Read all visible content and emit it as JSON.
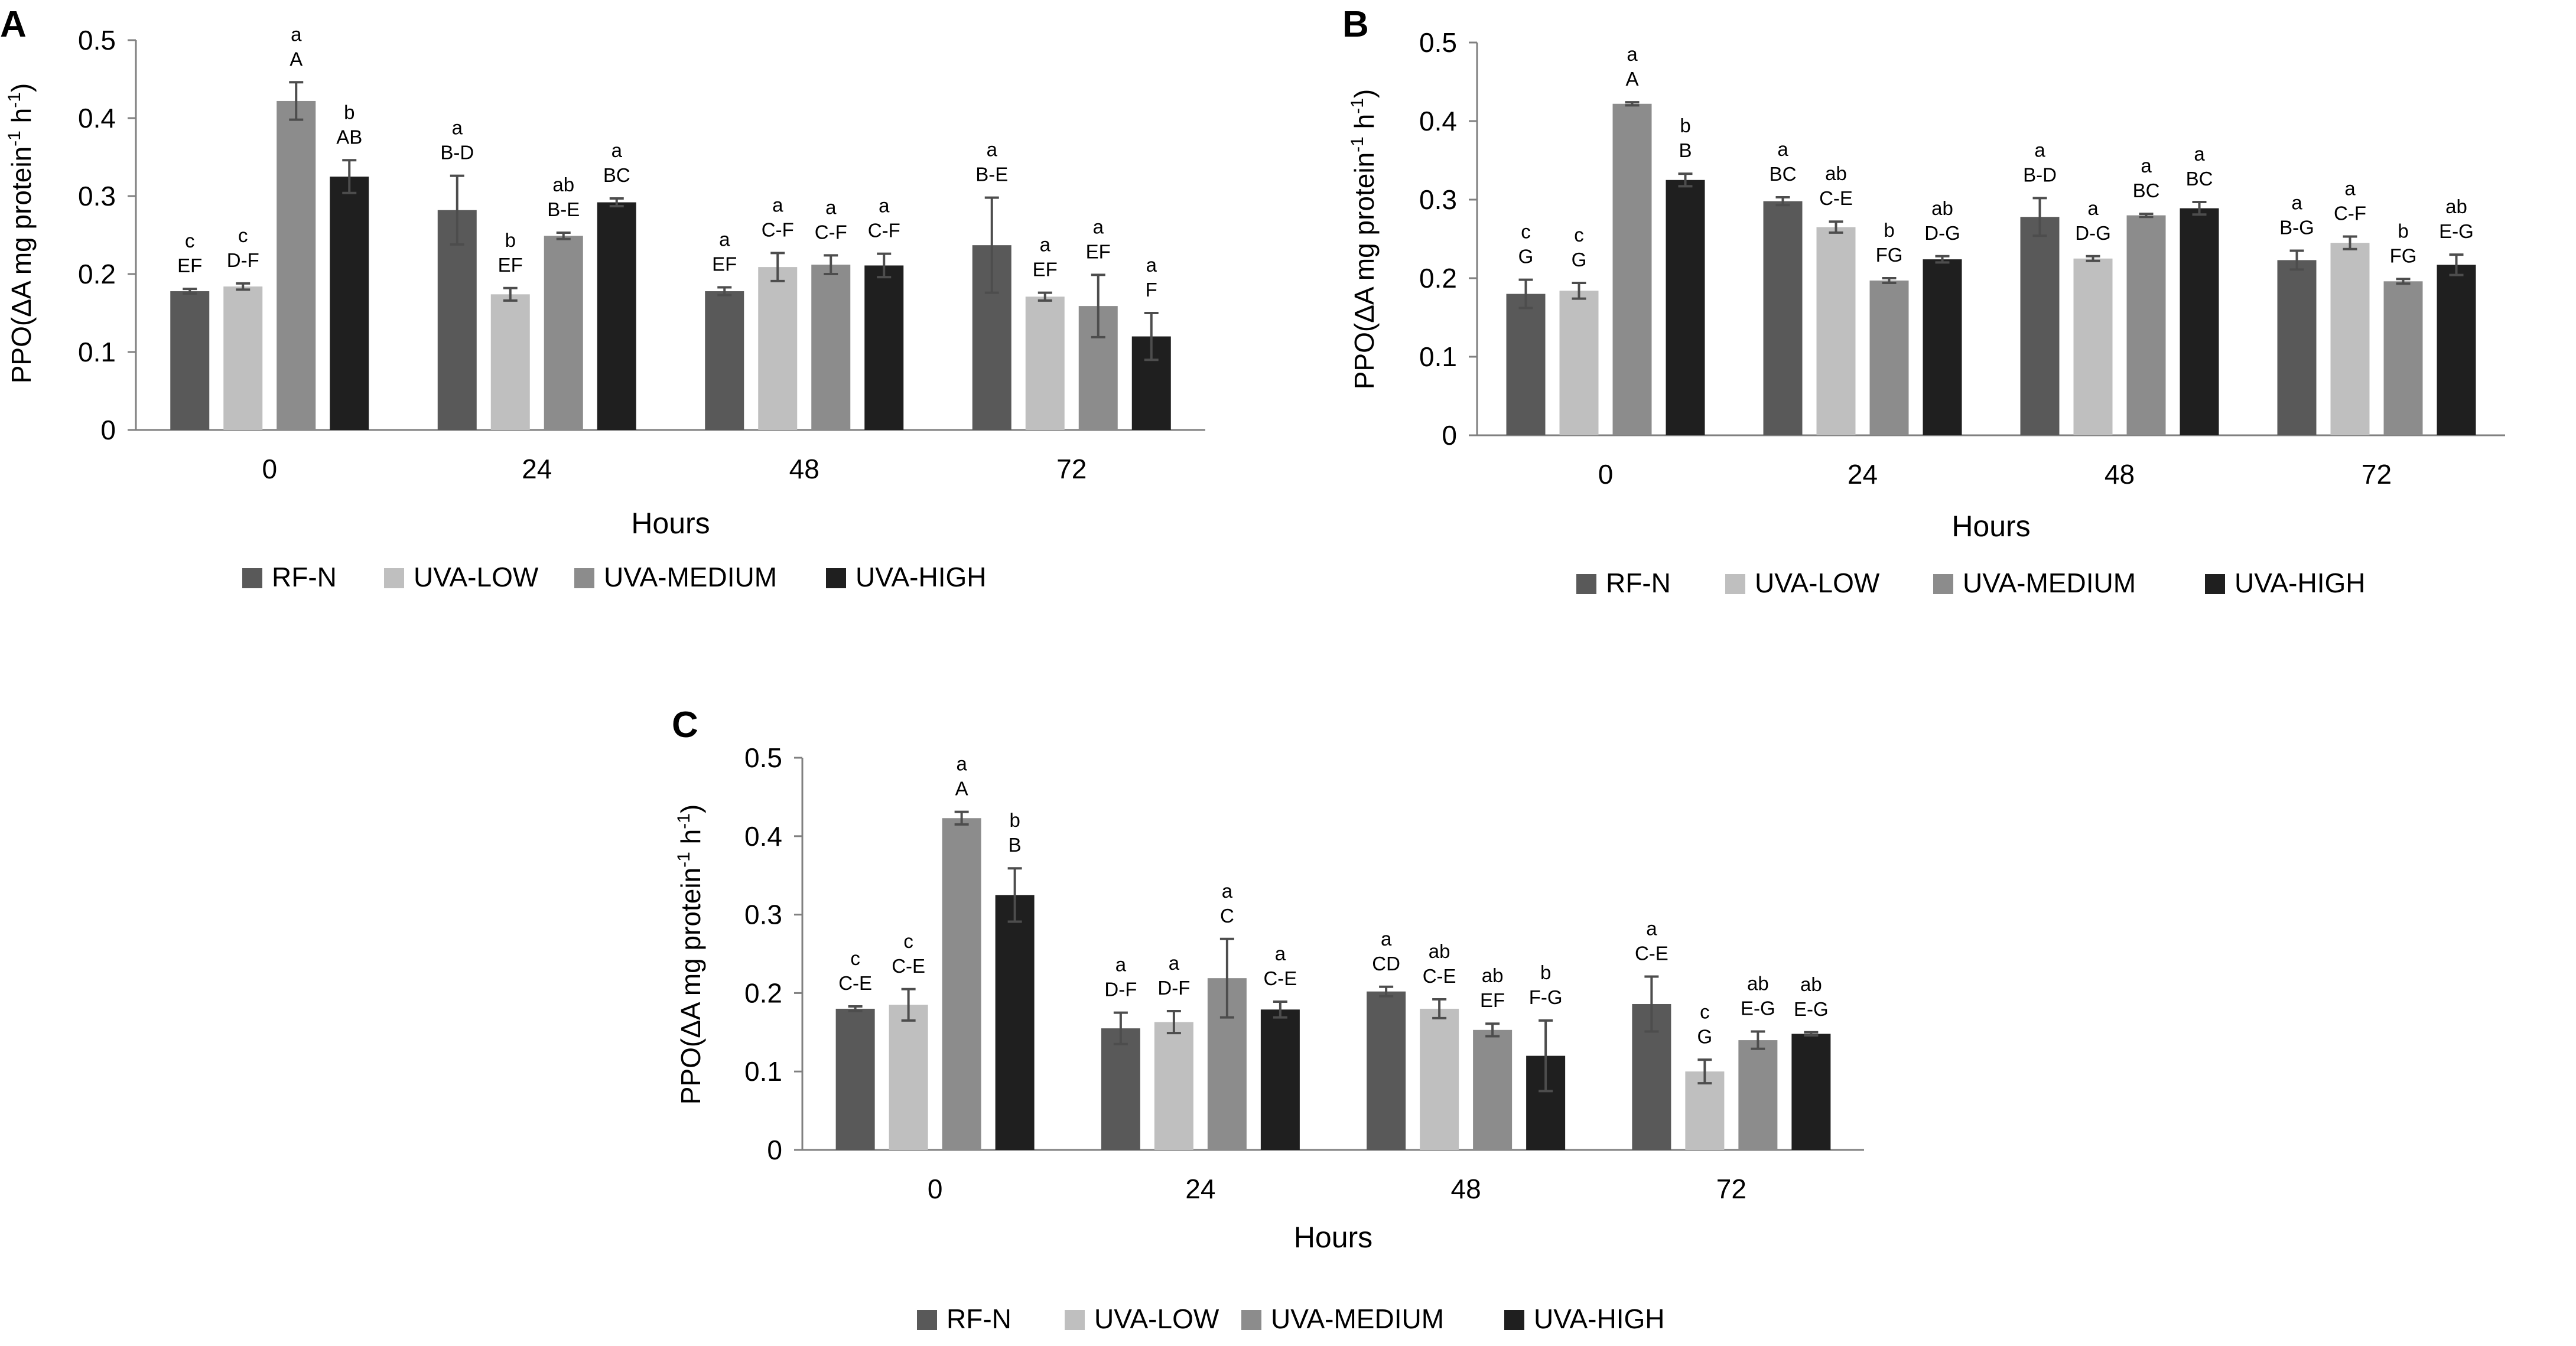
{
  "chart_data": [
    {
      "panel_label": "A",
      "type": "bar",
      "ylabel_main": "PPO(ΔA mg protein",
      "ylabel_sup1": "-1",
      "ylabel_mid": " h",
      "ylabel_sup2": "-1",
      "ylabel_end": ")",
      "xlabel": "Hours",
      "categories": [
        "0",
        "24",
        "48",
        "72"
      ],
      "ylim": [
        0,
        0.5
      ],
      "yticks": [
        "0",
        "0.1",
        "0.2",
        "0.3",
        "0.4",
        "0.5"
      ],
      "series": [
        {
          "name": "RF-N",
          "color": "#595959",
          "values": [
            0.178,
            0.282,
            0.178,
            0.237
          ],
          "errors": [
            0.003,
            0.044,
            0.005,
            0.061
          ],
          "letters_lower": [
            "c",
            "a",
            "a",
            "a"
          ],
          "letters_upper": [
            "EF",
            "B-D",
            "EF",
            "B-E"
          ]
        },
        {
          "name": "UVA-LOW",
          "color": "#bfbfbf",
          "values": [
            0.184,
            0.174,
            0.209,
            0.171
          ],
          "errors": [
            0.004,
            0.008,
            0.018,
            0.005
          ],
          "letters_lower": [
            "c",
            "b",
            "a",
            "a"
          ],
          "letters_upper": [
            "D-F",
            "EF",
            "C-F",
            "EF"
          ]
        },
        {
          "name": "UVA-MEDIUM",
          "color": "#8c8c8c",
          "values": [
            0.422,
            0.249,
            0.212,
            0.159
          ],
          "errors": [
            0.024,
            0.004,
            0.012,
            0.04
          ],
          "letters_lower": [
            "a",
            "ab",
            "a",
            "a"
          ],
          "letters_upper": [
            "A",
            "B-E",
            "C-F",
            "EF"
          ]
        },
        {
          "name": "UVA-HIGH",
          "color": "#1f1f1f",
          "values": [
            0.325,
            0.292,
            0.211,
            0.12
          ],
          "errors": [
            0.021,
            0.005,
            0.015,
            0.03
          ],
          "letters_lower": [
            "b",
            "a",
            "a",
            "a"
          ],
          "letters_upper": [
            "AB",
            "BC",
            "C-F",
            "F"
          ]
        }
      ]
    },
    {
      "panel_label": "B",
      "type": "bar",
      "ylabel_main": "PPO(ΔA mg protein",
      "ylabel_sup1": "-1",
      "ylabel_mid": " h",
      "ylabel_sup2": "-1",
      "ylabel_end": ")",
      "xlabel": "Hours",
      "categories": [
        "0",
        "24",
        "48",
        "72"
      ],
      "ylim": [
        0,
        0.5
      ],
      "yticks": [
        "0",
        "0.1",
        "0.2",
        "0.3",
        "0.4",
        "0.5"
      ],
      "series": [
        {
          "name": "RF-N",
          "color": "#595959",
          "values": [
            0.18,
            0.298,
            0.278,
            0.223
          ],
          "errors": [
            0.018,
            0.005,
            0.024,
            0.012
          ],
          "letters_lower": [
            "c",
            "a",
            "a",
            "a"
          ],
          "letters_upper": [
            "G",
            "BC",
            "B-D",
            "B-G"
          ]
        },
        {
          "name": "UVA-LOW",
          "color": "#bfbfbf",
          "values": [
            0.184,
            0.265,
            0.225,
            0.245
          ],
          "errors": [
            0.01,
            0.007,
            0.003,
            0.008
          ],
          "letters_lower": [
            "c",
            "ab",
            "a",
            "a"
          ],
          "letters_upper": [
            "G",
            "C-E",
            "D-G",
            "C-F"
          ]
        },
        {
          "name": "UVA-MEDIUM",
          "color": "#8c8c8c",
          "values": [
            0.422,
            0.197,
            0.28,
            0.196
          ],
          "errors": [
            0.002,
            0.003,
            0.002,
            0.003
          ],
          "letters_lower": [
            "a",
            "b",
            "a",
            "b"
          ],
          "letters_upper": [
            "A",
            "FG",
            "BC",
            "FG"
          ]
        },
        {
          "name": "UVA-HIGH",
          "color": "#1f1f1f",
          "values": [
            0.325,
            0.224,
            0.289,
            0.217
          ],
          "errors": [
            0.008,
            0.004,
            0.008,
            0.013
          ],
          "letters_lower": [
            "b",
            "ab",
            "a",
            "ab"
          ],
          "letters_upper": [
            "B",
            "D-G",
            "BC",
            "E-G"
          ]
        }
      ]
    },
    {
      "panel_label": "C",
      "type": "bar",
      "ylabel_main": "PPO(ΔA mg protein",
      "ylabel_sup1": "-1",
      "ylabel_mid": " h",
      "ylabel_sup2": "-1",
      "ylabel_end": ")",
      "xlabel": "Hours",
      "categories": [
        "0",
        "24",
        "48",
        "72"
      ],
      "ylim": [
        0,
        0.5
      ],
      "yticks": [
        "0",
        "0.1",
        "0.2",
        "0.3",
        "0.4",
        "0.5"
      ],
      "series": [
        {
          "name": "RF-N",
          "color": "#595959",
          "values": [
            0.18,
            0.155,
            0.202,
            0.186
          ],
          "errors": [
            0.003,
            0.02,
            0.006,
            0.035
          ],
          "letters_lower": [
            "c",
            "a",
            "a",
            "a"
          ],
          "letters_upper": [
            "C-E",
            "D-F",
            "CD",
            "C-E"
          ]
        },
        {
          "name": "UVA-LOW",
          "color": "#bfbfbf",
          "values": [
            0.185,
            0.163,
            0.18,
            0.1
          ],
          "errors": [
            0.02,
            0.014,
            0.012,
            0.015
          ],
          "letters_lower": [
            "c",
            "a",
            "ab",
            "c"
          ],
          "letters_upper": [
            "C-E",
            "D-F",
            "C-E",
            "G"
          ]
        },
        {
          "name": "UVA-MEDIUM",
          "color": "#8c8c8c",
          "values": [
            0.423,
            0.219,
            0.153,
            0.14
          ],
          "errors": [
            0.008,
            0.05,
            0.008,
            0.011
          ],
          "letters_lower": [
            "a",
            "a",
            "ab",
            "ab"
          ],
          "letters_upper": [
            "A",
            "C",
            "EF",
            "E-G"
          ]
        },
        {
          "name": "UVA-HIGH",
          "color": "#1f1f1f",
          "values": [
            0.325,
            0.179,
            0.12,
            0.148
          ],
          "errors": [
            0.034,
            0.01,
            0.045,
            0.002
          ],
          "letters_lower": [
            "b",
            "a",
            "b",
            "ab"
          ],
          "letters_upper": [
            "B",
            "C-E",
            "F-G",
            "E-G"
          ]
        }
      ]
    }
  ]
}
